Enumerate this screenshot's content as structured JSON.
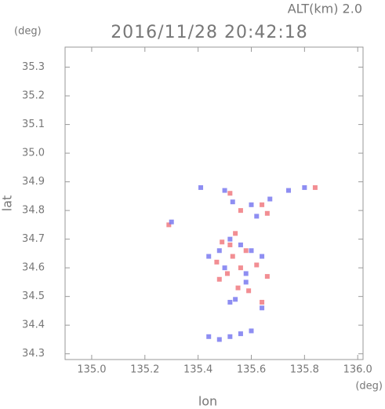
{
  "chart_data": {
    "type": "scatter",
    "title": "2016/11/28 20:42:18",
    "subtitle": "ALT(km) 2.0",
    "y_unit": "(deg)",
    "x_unit": "(deg)",
    "x_label": "lon",
    "y_label": "lat",
    "xlim": [
      134.9,
      136.02
    ],
    "ylim": [
      34.28,
      35.37
    ],
    "xticks": [
      {
        "value": 135.0,
        "label": "135.0"
      },
      135.2,
      135.4,
      135.6,
      135.8,
      {
        "value": 136.0,
        "label": "136.0"
      }
    ],
    "yticks": [
      34.3,
      34.4,
      34.5,
      34.6,
      34.7,
      34.8,
      34.9,
      {
        "value": 35.0,
        "label": "35.0"
      },
      35.1,
      35.2,
      35.3
    ],
    "grid": false,
    "series": [
      {
        "color": "#f07a80",
        "x": [
          135.29,
          135.52,
          135.56,
          135.64,
          135.66,
          135.84,
          135.49,
          135.52,
          135.58,
          135.47,
          135.56,
          135.62,
          135.51,
          135.55,
          135.59,
          135.64,
          135.48,
          135.53,
          135.66,
          135.54
        ],
        "values": [
          34.75,
          34.86,
          34.8,
          34.82,
          34.79,
          34.88,
          34.69,
          34.68,
          34.66,
          34.62,
          34.6,
          34.61,
          34.58,
          34.53,
          34.52,
          34.48,
          34.56,
          34.64,
          34.57,
          34.72
        ]
      },
      {
        "color": "#7a7af0",
        "x": [
          135.3,
          135.41,
          135.5,
          135.53,
          135.6,
          135.62,
          135.67,
          135.74,
          135.8,
          135.52,
          135.56,
          135.6,
          135.64,
          135.48,
          135.44,
          135.5,
          135.58,
          135.54,
          135.52,
          135.64,
          135.44,
          135.48,
          135.52,
          135.56,
          135.6,
          135.58
        ],
        "values": [
          34.76,
          34.88,
          34.87,
          34.83,
          34.82,
          34.78,
          34.84,
          34.87,
          34.88,
          34.7,
          34.68,
          34.66,
          34.64,
          34.66,
          34.64,
          34.6,
          34.58,
          34.49,
          34.48,
          34.46,
          34.36,
          34.35,
          34.36,
          34.37,
          34.38,
          34.55
        ]
      }
    ]
  }
}
